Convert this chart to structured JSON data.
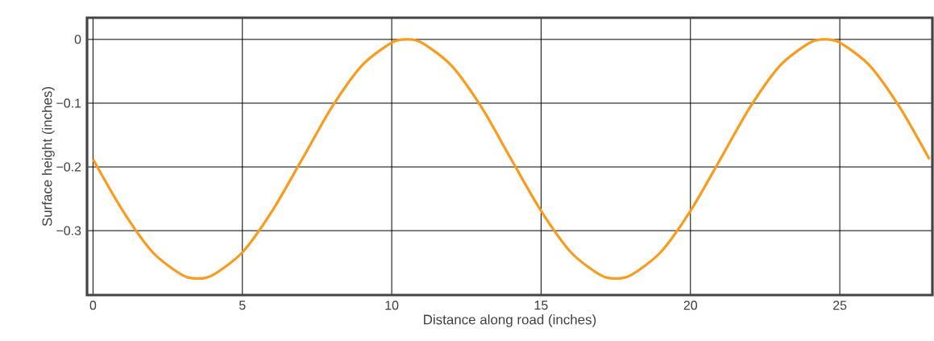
{
  "chart_data": {
    "type": "line",
    "xlabel": "Distance along road (inches)",
    "ylabel": "Surface height (inches)",
    "x": [
      0,
      1,
      2,
      3,
      3.5,
      4,
      5,
      6,
      7,
      8,
      9,
      10,
      10.5,
      11,
      12,
      13,
      14,
      15,
      16,
      17,
      17.5,
      18,
      19,
      20,
      21,
      22,
      23,
      24,
      24.5,
      25,
      26,
      27,
      28
    ],
    "values": [
      -0.188,
      -0.269,
      -0.334,
      -0.37,
      -0.375,
      -0.37,
      -0.334,
      -0.269,
      -0.188,
      -0.106,
      -0.041,
      -0.005,
      0,
      -0.005,
      -0.041,
      -0.106,
      -0.188,
      -0.269,
      -0.334,
      -0.37,
      -0.375,
      -0.37,
      -0.334,
      -0.269,
      -0.188,
      -0.106,
      -0.041,
      -0.005,
      0,
      -0.005,
      -0.041,
      -0.106,
      -0.188
    ],
    "color": "#f99b1c",
    "xlim": [
      -0.2,
      28.1
    ],
    "ylim": [
      -0.401,
      0.034
    ],
    "xticks": [
      0,
      5,
      10,
      15,
      20,
      25
    ],
    "yticks": [
      {
        "value": 0,
        "label": "0"
      },
      {
        "value": -0.1,
        "label": "−0.1"
      },
      {
        "value": -0.2,
        "label": "−0.2"
      },
      {
        "value": -0.3,
        "label": "−0.3"
      }
    ],
    "grid": true
  }
}
